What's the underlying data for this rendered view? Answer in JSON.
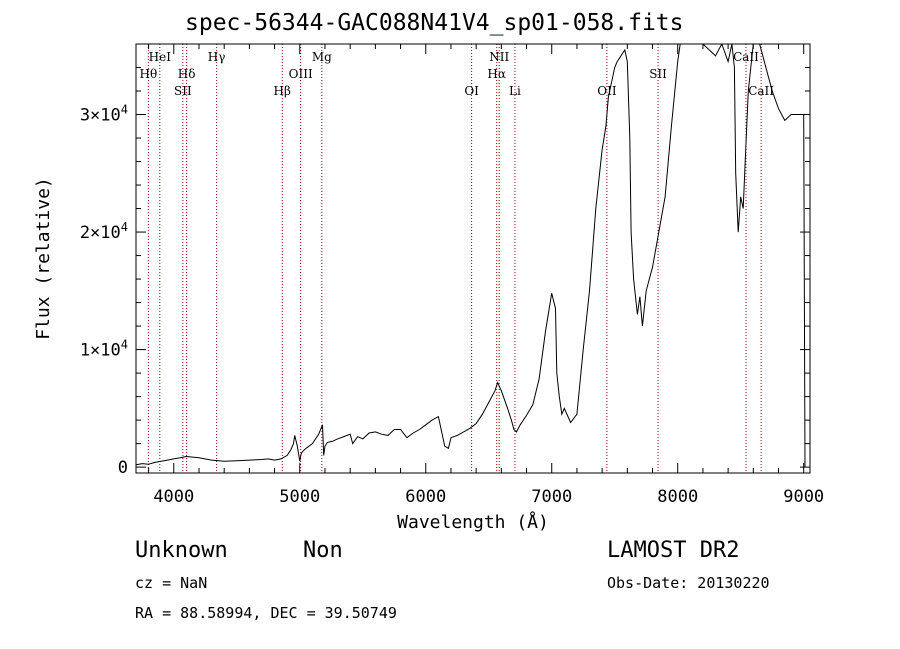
{
  "chart_data": {
    "type": "line",
    "title": "spec-56344-GAC088N41V4_sp01-058.fits",
    "xlabel": "Wavelength (Å)",
    "ylabel": "Flux (relative)",
    "xlim": [
      3700,
      9050
    ],
    "ylim": [
      -500,
      36000
    ],
    "xticks": [
      {
        "v": 4000,
        "label": "4000"
      },
      {
        "v": 5000,
        "label": "5000"
      },
      {
        "v": 6000,
        "label": "6000"
      },
      {
        "v": 7000,
        "label": "7000"
      },
      {
        "v": 8000,
        "label": "8000"
      },
      {
        "v": 9000,
        "label": "9000"
      }
    ],
    "yticks": [
      {
        "v": 0,
        "label": "0"
      },
      {
        "v": 10000,
        "label": "1×10",
        "exp": "4"
      },
      {
        "v": 20000,
        "label": "2×10",
        "exp": "4"
      },
      {
        "v": 30000,
        "label": "3×10",
        "exp": "4"
      }
    ],
    "grid": false,
    "series": [
      {
        "x": [
          3700,
          3750,
          3800,
          3850,
          3900,
          3950,
          4000,
          4050,
          4100,
          4150,
          4200,
          4300,
          4400,
          4500,
          4600,
          4700,
          4750,
          4800,
          4850,
          4900,
          4930,
          4950,
          4960,
          4980,
          5000,
          5010,
          5020,
          5050,
          5100,
          5150,
          5180,
          5190,
          5200,
          5220,
          5260,
          5300,
          5350,
          5400,
          5420,
          5460,
          5500,
          5550,
          5600,
          5650,
          5700,
          5750,
          5800,
          5850,
          5900,
          5950,
          6000,
          6050,
          6100,
          6150,
          6180,
          6200,
          6250,
          6300,
          6350,
          6400,
          6450,
          6500,
          6550,
          6570,
          6600,
          6650,
          6680,
          6700,
          6720,
          6750,
          6800,
          6850,
          6900,
          6950,
          7000,
          7030,
          7040,
          7060,
          7080,
          7100,
          7150,
          7200,
          7250,
          7300,
          7350,
          7400,
          7430,
          7450,
          7480,
          7500,
          7520,
          7550,
          7580,
          7600,
          7620,
          7630,
          7650,
          7680,
          7700,
          7720,
          7750,
          7800,
          7850,
          7900,
          7950,
          8000,
          8020,
          8050,
          8100,
          8200,
          8300,
          8350,
          8400,
          8430,
          8450,
          8460,
          8480,
          8500,
          8520,
          8540,
          8560,
          8600,
          8650,
          8700,
          8750,
          8800,
          8850,
          8900,
          8950,
          9000,
          9010
        ],
        "y": [
          200,
          300,
          250,
          400,
          500,
          600,
          700,
          800,
          900,
          850,
          800,
          600,
          500,
          550,
          600,
          650,
          700,
          600,
          700,
          1000,
          1500,
          2000,
          2700,
          1800,
          500,
          1100,
          1300,
          1600,
          2000,
          2800,
          3600,
          1000,
          1800,
          2100,
          2200,
          2400,
          2600,
          2800,
          2000,
          2600,
          2400,
          2900,
          3000,
          2800,
          2700,
          3200,
          3200,
          2500,
          2900,
          3200,
          3600,
          4000,
          4300,
          1800,
          1600,
          2500,
          2700,
          3000,
          3300,
          3700,
          4500,
          5500,
          6500,
          7200,
          6500,
          5000,
          4000,
          3200,
          3000,
          3600,
          4400,
          5300,
          7500,
          11500,
          14800,
          13500,
          8000,
          6000,
          4500,
          5000,
          3800,
          4500,
          10000,
          15000,
          22000,
          27000,
          29000,
          31500,
          33000,
          34000,
          34500,
          35000,
          35500,
          34500,
          28000,
          20000,
          16000,
          13000,
          14500,
          12000,
          15000,
          17000,
          20000,
          23000,
          29000,
          34500,
          36000,
          36000,
          36000,
          36000,
          35000,
          36000,
          34500,
          36000,
          34000,
          25000,
          20000,
          23000,
          22000,
          27000,
          32000,
          36000,
          36000,
          34000,
          32000,
          30500,
          29500,
          30000,
          30000,
          30000,
          0
        ]
      }
    ],
    "lines": [
      {
        "x": 3798,
        "label": "Hθ",
        "row": 2
      },
      {
        "x": 3889,
        "label": "HeI",
        "row": 1
      },
      {
        "x": 4072,
        "label": "SII",
        "row": 3
      },
      {
        "x": 4102,
        "label": "Hδ",
        "row": 2
      },
      {
        "x": 4340,
        "label": "Hγ",
        "row": 1
      },
      {
        "x": 4861,
        "label": "Hβ",
        "row": 3
      },
      {
        "x": 5007,
        "label": "OIII",
        "row": 2
      },
      {
        "x": 5175,
        "label": "Mg",
        "row": 1
      },
      {
        "x": 6364,
        "label": "OI",
        "row": 3
      },
      {
        "x": 6563,
        "label": "Hα",
        "row": 2
      },
      {
        "x": 6583,
        "label": "NII",
        "row": 1
      },
      {
        "x": 6708,
        "label": "Li",
        "row": 3
      },
      {
        "x": 7438,
        "label": "OII",
        "row": 3
      },
      {
        "x": 7844,
        "label": "SII",
        "row": 2
      },
      {
        "x": 8542,
        "label": "CaII",
        "row": 1
      },
      {
        "x": 8662,
        "label": "CaII",
        "row": 3
      }
    ]
  },
  "info": {
    "class": "Unknown",
    "subclass": "Non",
    "survey": "LAMOST DR2",
    "cz": "cz = NaN",
    "obs_date": "Obs-Date: 20130220",
    "coords": "RA =  88.58994, DEC =  39.50749"
  }
}
